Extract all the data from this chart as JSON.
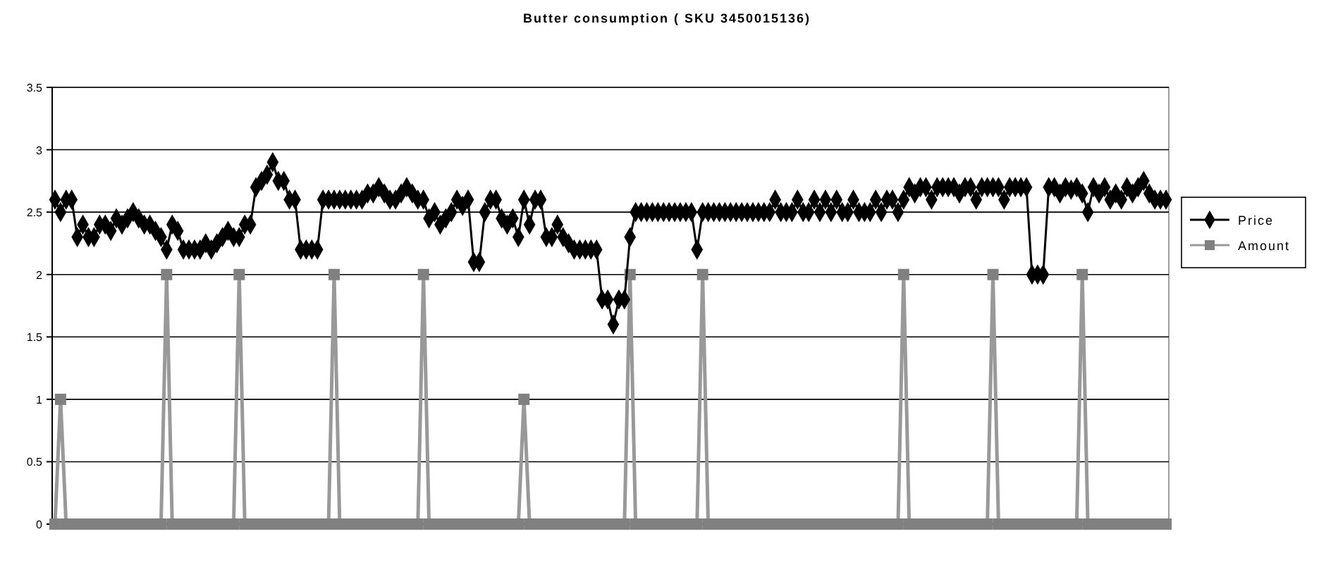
{
  "chart_data": {
    "type": "line",
    "title": "Butter consumption ( SKU 3450015136)",
    "categories": [
      null,
      null,
      null,
      null,
      null,
      null,
      null,
      null,
      null,
      null,
      null,
      null,
      null,
      null,
      null,
      null,
      null,
      null,
      null,
      null,
      null,
      null,
      null,
      null,
      null,
      null,
      null,
      null,
      null,
      null,
      null,
      null,
      null,
      null,
      null,
      null,
      null,
      null,
      null,
      null,
      null,
      null,
      null,
      null,
      null,
      null,
      null,
      null,
      null,
      null,
      null,
      null,
      null,
      null,
      null,
      null,
      null,
      null,
      null,
      null,
      null,
      null,
      null,
      null,
      null,
      null,
      null,
      null,
      null,
      null,
      null,
      null,
      null,
      null,
      null,
      null,
      null,
      null,
      null,
      null,
      null,
      null,
      null,
      null,
      null,
      null,
      null,
      null,
      null,
      null,
      null,
      null,
      null,
      null,
      null,
      null,
      null,
      null,
      null,
      null,
      null,
      null,
      null,
      null,
      null,
      null,
      null,
      null,
      null,
      null,
      null,
      null,
      null,
      null,
      null,
      null,
      null,
      null,
      null,
      null,
      null,
      null,
      null,
      null,
      null,
      null,
      null,
      null,
      null,
      null,
      null,
      null,
      null,
      null,
      null,
      null,
      null,
      null,
      null,
      null,
      null,
      null,
      null,
      null,
      null,
      null,
      null,
      null,
      null,
      null,
      null,
      null,
      null,
      null,
      null,
      null,
      null,
      null,
      null,
      null,
      null,
      null,
      null,
      null,
      null,
      null,
      null,
      null,
      null,
      null,
      null,
      null,
      null,
      null,
      null,
      null,
      null,
      null,
      null,
      null,
      null,
      null,
      null,
      null,
      null,
      null,
      null,
      null,
      null,
      null,
      null,
      null,
      null,
      null,
      null,
      null,
      null,
      null,
      null,
      null
    ],
    "series": [
      {
        "name": "Price",
        "color": "#000000",
        "marker": "diamond",
        "values": [
          2.6,
          2.5,
          2.6,
          2.6,
          2.3,
          2.4,
          2.3,
          2.3,
          2.4,
          2.4,
          2.35,
          2.45,
          2.4,
          2.45,
          2.5,
          2.45,
          2.4,
          2.4,
          2.35,
          2.3,
          2.2,
          2.4,
          2.35,
          2.2,
          2.2,
          2.2,
          2.2,
          2.25,
          2.2,
          2.25,
          2.3,
          2.35,
          2.3,
          2.3,
          2.4,
          2.4,
          2.7,
          2.75,
          2.8,
          2.9,
          2.75,
          2.75,
          2.6,
          2.6,
          2.2,
          2.2,
          2.2,
          2.2,
          2.6,
          2.6,
          2.6,
          2.6,
          2.6,
          2.6,
          2.6,
          2.6,
          2.65,
          2.65,
          2.7,
          2.65,
          2.6,
          2.6,
          2.65,
          2.7,
          2.65,
          2.6,
          2.6,
          2.45,
          2.5,
          2.4,
          2.45,
          2.5,
          2.6,
          2.55,
          2.6,
          2.1,
          2.1,
          2.5,
          2.6,
          2.6,
          2.45,
          2.4,
          2.45,
          2.3,
          2.6,
          2.4,
          2.6,
          2.6,
          2.3,
          2.3,
          2.4,
          2.3,
          2.25,
          2.2,
          2.2,
          2.2,
          2.2,
          2.2,
          1.8,
          1.8,
          1.6,
          1.8,
          1.8,
          2.3,
          2.5,
          2.5,
          2.5,
          2.5,
          2.5,
          2.5,
          2.5,
          2.5,
          2.5,
          2.5,
          2.5,
          2.2,
          2.5,
          2.5,
          2.5,
          2.5,
          2.5,
          2.5,
          2.5,
          2.5,
          2.5,
          2.5,
          2.5,
          2.5,
          2.5,
          2.6,
          2.5,
          2.5,
          2.5,
          2.6,
          2.5,
          2.5,
          2.6,
          2.5,
          2.6,
          2.5,
          2.6,
          2.5,
          2.5,
          2.6,
          2.5,
          2.5,
          2.5,
          2.6,
          2.5,
          2.6,
          2.6,
          2.5,
          2.6,
          2.7,
          2.65,
          2.7,
          2.7,
          2.6,
          2.7,
          2.7,
          2.7,
          2.7,
          2.65,
          2.7,
          2.7,
          2.6,
          2.7,
          2.7,
          2.7,
          2.7,
          2.6,
          2.7,
          2.7,
          2.7,
          2.7,
          2.0,
          2.0,
          2.0,
          2.7,
          2.7,
          2.65,
          2.7,
          2.68,
          2.7,
          2.65,
          2.5,
          2.7,
          2.65,
          2.7,
          2.6,
          2.65,
          2.6,
          2.7,
          2.65,
          2.7,
          2.75,
          2.65,
          2.6,
          2.6,
          2.6
        ]
      },
      {
        "name": "Amount",
        "color": "#808080",
        "marker": "square",
        "values": [
          0,
          1,
          0,
          0,
          0,
          0,
          0,
          0,
          0,
          0,
          0,
          0,
          0,
          0,
          0,
          0,
          0,
          0,
          0,
          0,
          2,
          0,
          0,
          0,
          0,
          0,
          0,
          0,
          0,
          0,
          0,
          0,
          0,
          2,
          0,
          0,
          0,
          0,
          0,
          0,
          0,
          0,
          0,
          0,
          0,
          0,
          0,
          0,
          0,
          0,
          2,
          0,
          0,
          0,
          0,
          0,
          0,
          0,
          0,
          0,
          0,
          0,
          0,
          0,
          0,
          0,
          2,
          0,
          0,
          0,
          0,
          0,
          0,
          0,
          0,
          0,
          0,
          0,
          0,
          0,
          0,
          0,
          0,
          0,
          1,
          0,
          0,
          0,
          0,
          0,
          0,
          0,
          0,
          0,
          0,
          0,
          0,
          0,
          0,
          0,
          0,
          0,
          0,
          2,
          0,
          0,
          0,
          0,
          0,
          0,
          0,
          0,
          0,
          0,
          0,
          0,
          2,
          0,
          0,
          0,
          0,
          0,
          0,
          0,
          0,
          0,
          0,
          0,
          0,
          0,
          0,
          0,
          0,
          0,
          0,
          0,
          0,
          0,
          0,
          0,
          0,
          0,
          0,
          0,
          0,
          0,
          0,
          0,
          0,
          0,
          0,
          0,
          2,
          0,
          0,
          0,
          0,
          0,
          0,
          0,
          0,
          0,
          0,
          0,
          0,
          0,
          0,
          0,
          2,
          0,
          0,
          0,
          0,
          0,
          0,
          0,
          0,
          0,
          0,
          0,
          0,
          0,
          0,
          0,
          2,
          0,
          0,
          0,
          0,
          0,
          0,
          0,
          0,
          0,
          0,
          0,
          0,
          0,
          0,
          0
        ]
      }
    ],
    "ylim": [
      0,
      3.5
    ],
    "yticks": [
      0,
      0.5,
      1,
      1.5,
      2,
      2.5,
      3,
      3.5
    ],
    "grid": "y",
    "legend": "right"
  }
}
